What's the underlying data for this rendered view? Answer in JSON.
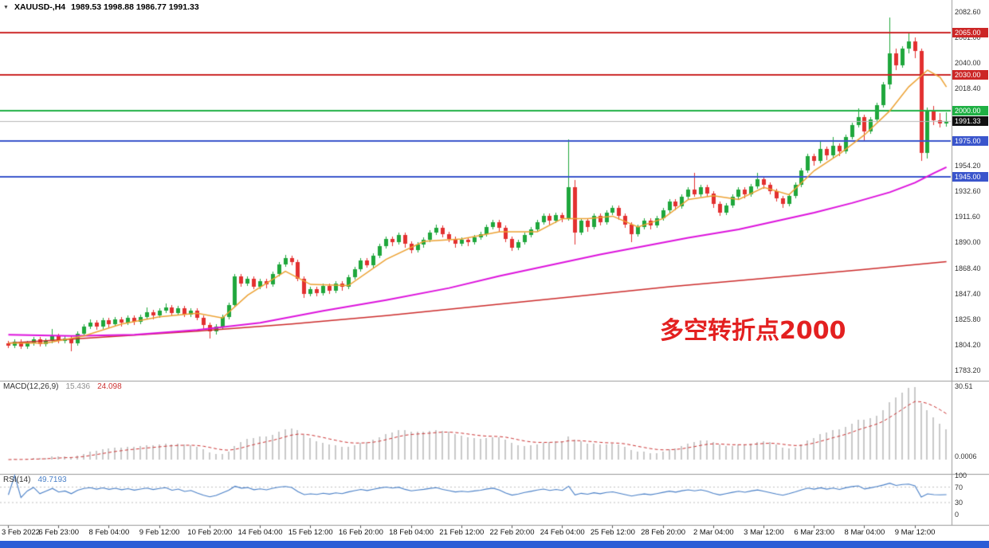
{
  "window": {
    "bottom_bar_color": "#2b5cd6"
  },
  "header": {
    "dropdown_icon": "▼",
    "symbol_period": "XAUUSD-,H4",
    "ohlc": "1989.53 1998.88 1986.77 1991.33"
  },
  "annotation": {
    "text": "多空转折点2000",
    "color": "#e32020"
  },
  "macd_panel": {
    "label": "MACD(12,26,9)",
    "value_main": "15.436",
    "value_signal": "24.098",
    "axis_max": "30.51",
    "axis_min": "0.0006"
  },
  "rsi_panel": {
    "label": "RSI(14)",
    "value": "49.7193",
    "axis": [
      "100",
      "70",
      "30",
      "0"
    ]
  },
  "price_axis": {
    "labels": [
      "2082.60",
      "2061.00",
      "2040.00",
      "2018.40",
      "1954.20",
      "1932.60",
      "1911.60",
      "1890.00",
      "1868.40",
      "1847.40",
      "1825.80",
      "1804.20",
      "1783.20"
    ]
  },
  "chart_data": {
    "type": "candlestick",
    "symbol": "XAUUSD",
    "timeframe": "H4",
    "visible_price_range": [
      1776,
      2088
    ],
    "current_price": 1991.33,
    "colors": {
      "bull": "#1fa73c",
      "bear": "#e33030"
    },
    "horizontal_lines": [
      {
        "price": 2065.0,
        "label": "2065.00",
        "color": "#cc2626"
      },
      {
        "price": 2030.0,
        "label": "2030.00",
        "color": "#cc2626"
      },
      {
        "price": 2000.0,
        "label": "2000.00",
        "color": "#1fb044"
      },
      {
        "price": 1975.0,
        "label": "1975.00",
        "color": "#3a55cc"
      },
      {
        "price": 1945.0,
        "label": "1945.00",
        "color": "#3a55cc"
      }
    ],
    "current_price_line": {
      "price": 1991.33,
      "label": "1991.33",
      "color": "#111111"
    },
    "time_axis": [
      {
        "bar": 0,
        "label": "3 Feb 2022"
      },
      {
        "bar": 8,
        "label": "6 Feb 23:00"
      },
      {
        "bar": 16,
        "label": "8 Feb 04:00"
      },
      {
        "bar": 24,
        "label": "9 Feb 12:00"
      },
      {
        "bar": 32,
        "label": "10 Feb 20:00"
      },
      {
        "bar": 40,
        "label": "14 Feb 04:00"
      },
      {
        "bar": 48,
        "label": "15 Feb 12:00"
      },
      {
        "bar": 56,
        "label": "16 Feb 20:00"
      },
      {
        "bar": 64,
        "label": "18 Feb 04:00"
      },
      {
        "bar": 72,
        "label": "21 Feb 12:00"
      },
      {
        "bar": 80,
        "label": "22 Feb 20:00"
      },
      {
        "bar": 88,
        "label": "24 Feb 04:00"
      },
      {
        "bar": 96,
        "label": "25 Feb 12:00"
      },
      {
        "bar": 104,
        "label": "28 Feb 20:00"
      },
      {
        "bar": 112,
        "label": "2 Mar 04:00"
      },
      {
        "bar": 120,
        "label": "3 Mar 12:00"
      },
      {
        "bar": 128,
        "label": "6 Mar 23:00"
      },
      {
        "bar": 136,
        "label": "8 Mar 04:00"
      },
      {
        "bar": 144,
        "label": "9 Mar 12:00"
      }
    ],
    "candles": [
      [
        1806,
        1808,
        1802,
        1804
      ],
      [
        1804,
        1809,
        1802,
        1807
      ],
      [
        1807,
        1809,
        1801,
        1803
      ],
      [
        1803,
        1808,
        1801,
        1806
      ],
      [
        1806,
        1811,
        1804,
        1809
      ],
      [
        1809,
        1811,
        1803,
        1805
      ],
      [
        1805,
        1810,
        1803,
        1808
      ],
      [
        1808,
        1818,
        1806,
        1812
      ],
      [
        1812,
        1814,
        1806,
        1808
      ],
      [
        1808,
        1812,
        1806,
        1810
      ],
      [
        1810,
        1812,
        1799,
        1806
      ],
      [
        1806,
        1816,
        1804,
        1814
      ],
      [
        1814,
        1822,
        1812,
        1820
      ],
      [
        1820,
        1826,
        1818,
        1823
      ],
      [
        1823,
        1825,
        1817,
        1820
      ],
      [
        1820,
        1827,
        1818,
        1825
      ],
      [
        1825,
        1827,
        1819,
        1822
      ],
      [
        1822,
        1828,
        1820,
        1826
      ],
      [
        1826,
        1828,
        1820,
        1823
      ],
      [
        1823,
        1829,
        1821,
        1827
      ],
      [
        1827,
        1829,
        1821,
        1824
      ],
      [
        1824,
        1830,
        1822,
        1828
      ],
      [
        1828,
        1836,
        1826,
        1832
      ],
      [
        1832,
        1834,
        1826,
        1829
      ],
      [
        1829,
        1835,
        1827,
        1833
      ],
      [
        1833,
        1839,
        1831,
        1836
      ],
      [
        1836,
        1838,
        1829,
        1831
      ],
      [
        1831,
        1837,
        1829,
        1835
      ],
      [
        1835,
        1837,
        1828,
        1830
      ],
      [
        1830,
        1835,
        1828,
        1833
      ],
      [
        1833,
        1835,
        1825,
        1827
      ],
      [
        1827,
        1829,
        1818,
        1821
      ],
      [
        1821,
        1823,
        1810,
        1816
      ],
      [
        1816,
        1822,
        1813,
        1820
      ],
      [
        1820,
        1830,
        1818,
        1828
      ],
      [
        1828,
        1840,
        1826,
        1838
      ],
      [
        1838,
        1864,
        1836,
        1862
      ],
      [
        1862,
        1864,
        1853,
        1856
      ],
      [
        1856,
        1862,
        1854,
        1860
      ],
      [
        1860,
        1862,
        1851,
        1853
      ],
      [
        1853,
        1860,
        1851,
        1858
      ],
      [
        1858,
        1860,
        1852,
        1855
      ],
      [
        1855,
        1866,
        1853,
        1864
      ],
      [
        1864,
        1874,
        1862,
        1872
      ],
      [
        1872,
        1880,
        1870,
        1877
      ],
      [
        1877,
        1879,
        1871,
        1874
      ],
      [
        1874,
        1876,
        1858,
        1860
      ],
      [
        1860,
        1862,
        1844,
        1847
      ],
      [
        1847,
        1853,
        1845,
        1851
      ],
      [
        1851,
        1853,
        1845,
        1848
      ],
      [
        1848,
        1856,
        1846,
        1854
      ],
      [
        1854,
        1856,
        1847,
        1850
      ],
      [
        1850,
        1858,
        1848,
        1856
      ],
      [
        1856,
        1858,
        1850,
        1853
      ],
      [
        1853,
        1863,
        1851,
        1861
      ],
      [
        1861,
        1870,
        1859,
        1868
      ],
      [
        1868,
        1877,
        1866,
        1875
      ],
      [
        1875,
        1877,
        1869,
        1871
      ],
      [
        1871,
        1881,
        1869,
        1879
      ],
      [
        1879,
        1889,
        1877,
        1887
      ],
      [
        1887,
        1895,
        1885,
        1893
      ],
      [
        1893,
        1895,
        1887,
        1890
      ],
      [
        1890,
        1898,
        1888,
        1896
      ],
      [
        1896,
        1898,
        1886,
        1889
      ],
      [
        1889,
        1891,
        1881,
        1884
      ],
      [
        1884,
        1890,
        1882,
        1888
      ],
      [
        1888,
        1894,
        1886,
        1892
      ],
      [
        1892,
        1900,
        1890,
        1898
      ],
      [
        1898,
        1905,
        1896,
        1902
      ],
      [
        1902,
        1904,
        1894,
        1897
      ],
      [
        1897,
        1899,
        1890,
        1893
      ],
      [
        1893,
        1895,
        1886,
        1889
      ],
      [
        1889,
        1894,
        1887,
        1892
      ],
      [
        1892,
        1894,
        1887,
        1890
      ],
      [
        1890,
        1896,
        1888,
        1894
      ],
      [
        1894,
        1899,
        1892,
        1897
      ],
      [
        1897,
        1905,
        1895,
        1903
      ],
      [
        1903,
        1909,
        1901,
        1907
      ],
      [
        1907,
        1909,
        1899,
        1902
      ],
      [
        1902,
        1904,
        1890,
        1893
      ],
      [
        1893,
        1895,
        1883,
        1886
      ],
      [
        1886,
        1892,
        1884,
        1890
      ],
      [
        1890,
        1898,
        1888,
        1896
      ],
      [
        1896,
        1903,
        1894,
        1901
      ],
      [
        1901,
        1909,
        1899,
        1907
      ],
      [
        1907,
        1914,
        1905,
        1912
      ],
      [
        1912,
        1914,
        1905,
        1908
      ],
      [
        1908,
        1915,
        1906,
        1913
      ],
      [
        1913,
        1915,
        1907,
        1910
      ],
      [
        1910,
        1976,
        1908,
        1936
      ],
      [
        1936,
        1942,
        1888,
        1898
      ],
      [
        1898,
        1910,
        1896,
        1908
      ],
      [
        1908,
        1910,
        1899,
        1903
      ],
      [
        1903,
        1914,
        1901,
        1912
      ],
      [
        1912,
        1914,
        1904,
        1907
      ],
      [
        1907,
        1917,
        1905,
        1915
      ],
      [
        1915,
        1921,
        1913,
        1919
      ],
      [
        1919,
        1921,
        1909,
        1912
      ],
      [
        1912,
        1914,
        1902,
        1905
      ],
      [
        1905,
        1907,
        1890,
        1897
      ],
      [
        1897,
        1905,
        1895,
        1903
      ],
      [
        1903,
        1910,
        1901,
        1908
      ],
      [
        1908,
        1910,
        1901,
        1904
      ],
      [
        1904,
        1912,
        1902,
        1910
      ],
      [
        1910,
        1919,
        1908,
        1917
      ],
      [
        1917,
        1926,
        1915,
        1924
      ],
      [
        1924,
        1926,
        1917,
        1920
      ],
      [
        1920,
        1930,
        1918,
        1928
      ],
      [
        1928,
        1936,
        1926,
        1934
      ],
      [
        1934,
        1948,
        1928,
        1930
      ],
      [
        1930,
        1938,
        1928,
        1936
      ],
      [
        1936,
        1938,
        1928,
        1931
      ],
      [
        1931,
        1933,
        1919,
        1922
      ],
      [
        1922,
        1924,
        1912,
        1915
      ],
      [
        1915,
        1923,
        1913,
        1921
      ],
      [
        1921,
        1930,
        1919,
        1928
      ],
      [
        1928,
        1936,
        1926,
        1934
      ],
      [
        1934,
        1936,
        1927,
        1930
      ],
      [
        1930,
        1939,
        1928,
        1937
      ],
      [
        1937,
        1948,
        1935,
        1943
      ],
      [
        1943,
        1945,
        1935,
        1938
      ],
      [
        1938,
        1940,
        1930,
        1933
      ],
      [
        1933,
        1935,
        1924,
        1927
      ],
      [
        1927,
        1929,
        1919,
        1922
      ],
      [
        1922,
        1931,
        1920,
        1929
      ],
      [
        1929,
        1940,
        1927,
        1938
      ],
      [
        1938,
        1952,
        1936,
        1950
      ],
      [
        1950,
        1964,
        1948,
        1962
      ],
      [
        1962,
        1964,
        1954,
        1958
      ],
      [
        1958,
        1974,
        1956,
        1968
      ],
      [
        1968,
        1970,
        1959,
        1963
      ],
      [
        1963,
        1978,
        1961,
        1971
      ],
      [
        1971,
        1973,
        1962,
        1966
      ],
      [
        1966,
        1980,
        1964,
        1978
      ],
      [
        1978,
        1990,
        1976,
        1988
      ],
      [
        1988,
        2002,
        1986,
        1995
      ],
      [
        1995,
        1997,
        1975,
        1983
      ],
      [
        1983,
        1995,
        1981,
        1993
      ],
      [
        1993,
        2007,
        1991,
        2005
      ],
      [
        2005,
        2024,
        2003,
        2022
      ],
      [
        2022,
        2078,
        2018,
        2048
      ],
      [
        2048,
        2052,
        2034,
        2038
      ],
      [
        2038,
        2054,
        2036,
        2052
      ],
      [
        2052,
        2066,
        2048,
        2058
      ],
      [
        2058,
        2061,
        2044,
        2050
      ],
      [
        2050,
        2052,
        1958,
        1965
      ],
      [
        1965,
        2003,
        1960,
        2000
      ],
      [
        2000,
        2004,
        1988,
        1992
      ],
      [
        1992,
        1998,
        1986,
        1989.5
      ],
      [
        1989.53,
        1998.88,
        1986.77,
        1991.33
      ]
    ],
    "ma_lines": [
      {
        "name": "slow-ma",
        "color": "#cc2b2b",
        "width": 1.5,
        "points": [
          [
            0,
            1806
          ],
          [
            15,
            1811
          ],
          [
            30,
            1816
          ],
          [
            45,
            1822
          ],
          [
            60,
            1829
          ],
          [
            75,
            1837
          ],
          [
            90,
            1845
          ],
          [
            105,
            1853
          ],
          [
            120,
            1860
          ],
          [
            135,
            1867
          ],
          [
            149,
            1874
          ]
        ]
      },
      {
        "name": "medium-ma",
        "color": "#dd14dd",
        "width": 2,
        "points": [
          [
            0,
            1813
          ],
          [
            10,
            1812
          ],
          [
            20,
            1813
          ],
          [
            30,
            1817
          ],
          [
            40,
            1823
          ],
          [
            50,
            1833
          ],
          [
            60,
            1842
          ],
          [
            70,
            1852
          ],
          [
            78,
            1862
          ],
          [
            86,
            1871
          ],
          [
            94,
            1880
          ],
          [
            100,
            1886
          ],
          [
            108,
            1894
          ],
          [
            116,
            1901
          ],
          [
            122,
            1908
          ],
          [
            128,
            1915
          ],
          [
            134,
            1923
          ],
          [
            140,
            1932
          ],
          [
            144,
            1940
          ],
          [
            147,
            1948
          ],
          [
            149,
            1953
          ]
        ]
      },
      {
        "name": "fast-ma",
        "color": "#eda233",
        "width": 1.5,
        "points": [
          [
            0,
            1806
          ],
          [
            6,
            1806
          ],
          [
            12,
            1812
          ],
          [
            18,
            1822
          ],
          [
            24,
            1828
          ],
          [
            30,
            1831
          ],
          [
            34,
            1827
          ],
          [
            38,
            1846
          ],
          [
            44,
            1866
          ],
          [
            48,
            1855
          ],
          [
            54,
            1854
          ],
          [
            60,
            1876
          ],
          [
            66,
            1891
          ],
          [
            72,
            1893
          ],
          [
            78,
            1899
          ],
          [
            84,
            1899
          ],
          [
            88,
            1910
          ],
          [
            92,
            1910
          ],
          [
            96,
            1912
          ],
          [
            100,
            1903
          ],
          [
            104,
            1910
          ],
          [
            108,
            1926
          ],
          [
            112,
            1929
          ],
          [
            116,
            1926
          ],
          [
            120,
            1936
          ],
          [
            124,
            1930
          ],
          [
            128,
            1950
          ],
          [
            132,
            1964
          ],
          [
            136,
            1980
          ],
          [
            140,
            2000
          ],
          [
            143,
            2020
          ],
          [
            146,
            2034
          ],
          [
            148,
            2028
          ],
          [
            149,
            2020
          ]
        ]
      }
    ],
    "indicators": {
      "macd": {
        "fast": 12,
        "slow": 26,
        "signal": 9,
        "scale_max": 30.51,
        "hist_color": "#c9c9c9",
        "signal_color": "#cc3333"
      },
      "rsi": {
        "period": 14,
        "color": "#4a80c8",
        "levels": [
          70,
          30
        ]
      }
    }
  }
}
